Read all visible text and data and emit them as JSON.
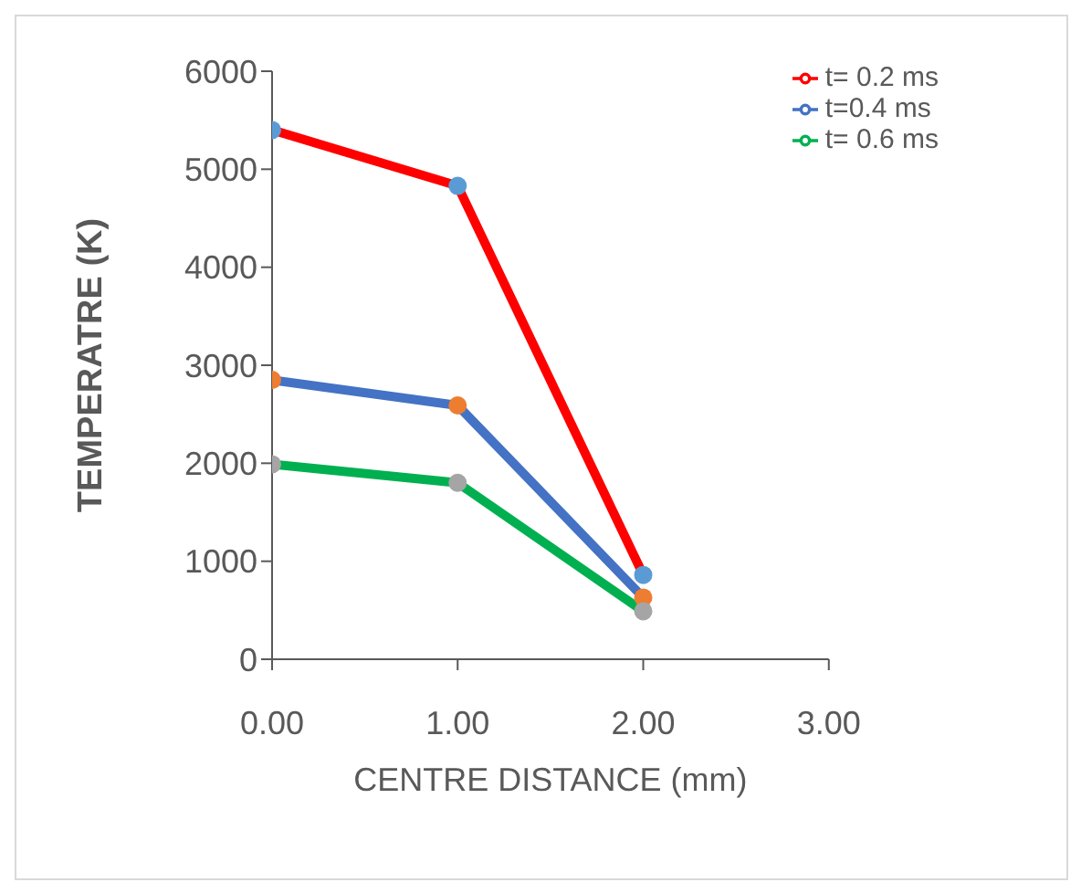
{
  "chart_data": {
    "type": "line",
    "xlabel": "CENTRE DISTANCE (mm)",
    "ylabel": "TEMPERATRE (K)",
    "x": [
      0,
      1,
      2
    ],
    "xlim": [
      0,
      3
    ],
    "xticks": [
      {
        "value": 0,
        "label": "0.00"
      },
      {
        "value": 1,
        "label": "1.00"
      },
      {
        "value": 2,
        "label": "2.00"
      },
      {
        "value": 3,
        "label": "3.00"
      }
    ],
    "ylim": [
      0,
      6000
    ],
    "yticks": [
      0,
      1000,
      2000,
      3000,
      4000,
      5000,
      6000
    ],
    "series": [
      {
        "name": "t= 0.2 ms",
        "color": "#ff0000",
        "colors": [
          "#5b9bd5",
          "#5b9bd5",
          "#5b9bd5"
        ],
        "values": [
          5400,
          4830,
          860
        ]
      },
      {
        "name": "t=0.4 ms",
        "color": "#4472c4",
        "colors": [
          "#ed7d31",
          "#ed7d31",
          "#ed7d31"
        ],
        "values": [
          2850,
          2590,
          630
        ]
      },
      {
        "name": "t= 0.6 ms",
        "color": "#00b050",
        "colors": [
          "#a5a5a5",
          "#a5a5a5",
          "#a5a5a5"
        ],
        "values": [
          1990,
          1800,
          490
        ]
      }
    ],
    "legend": "top right",
    "marker": "circle",
    "grid": false
  }
}
